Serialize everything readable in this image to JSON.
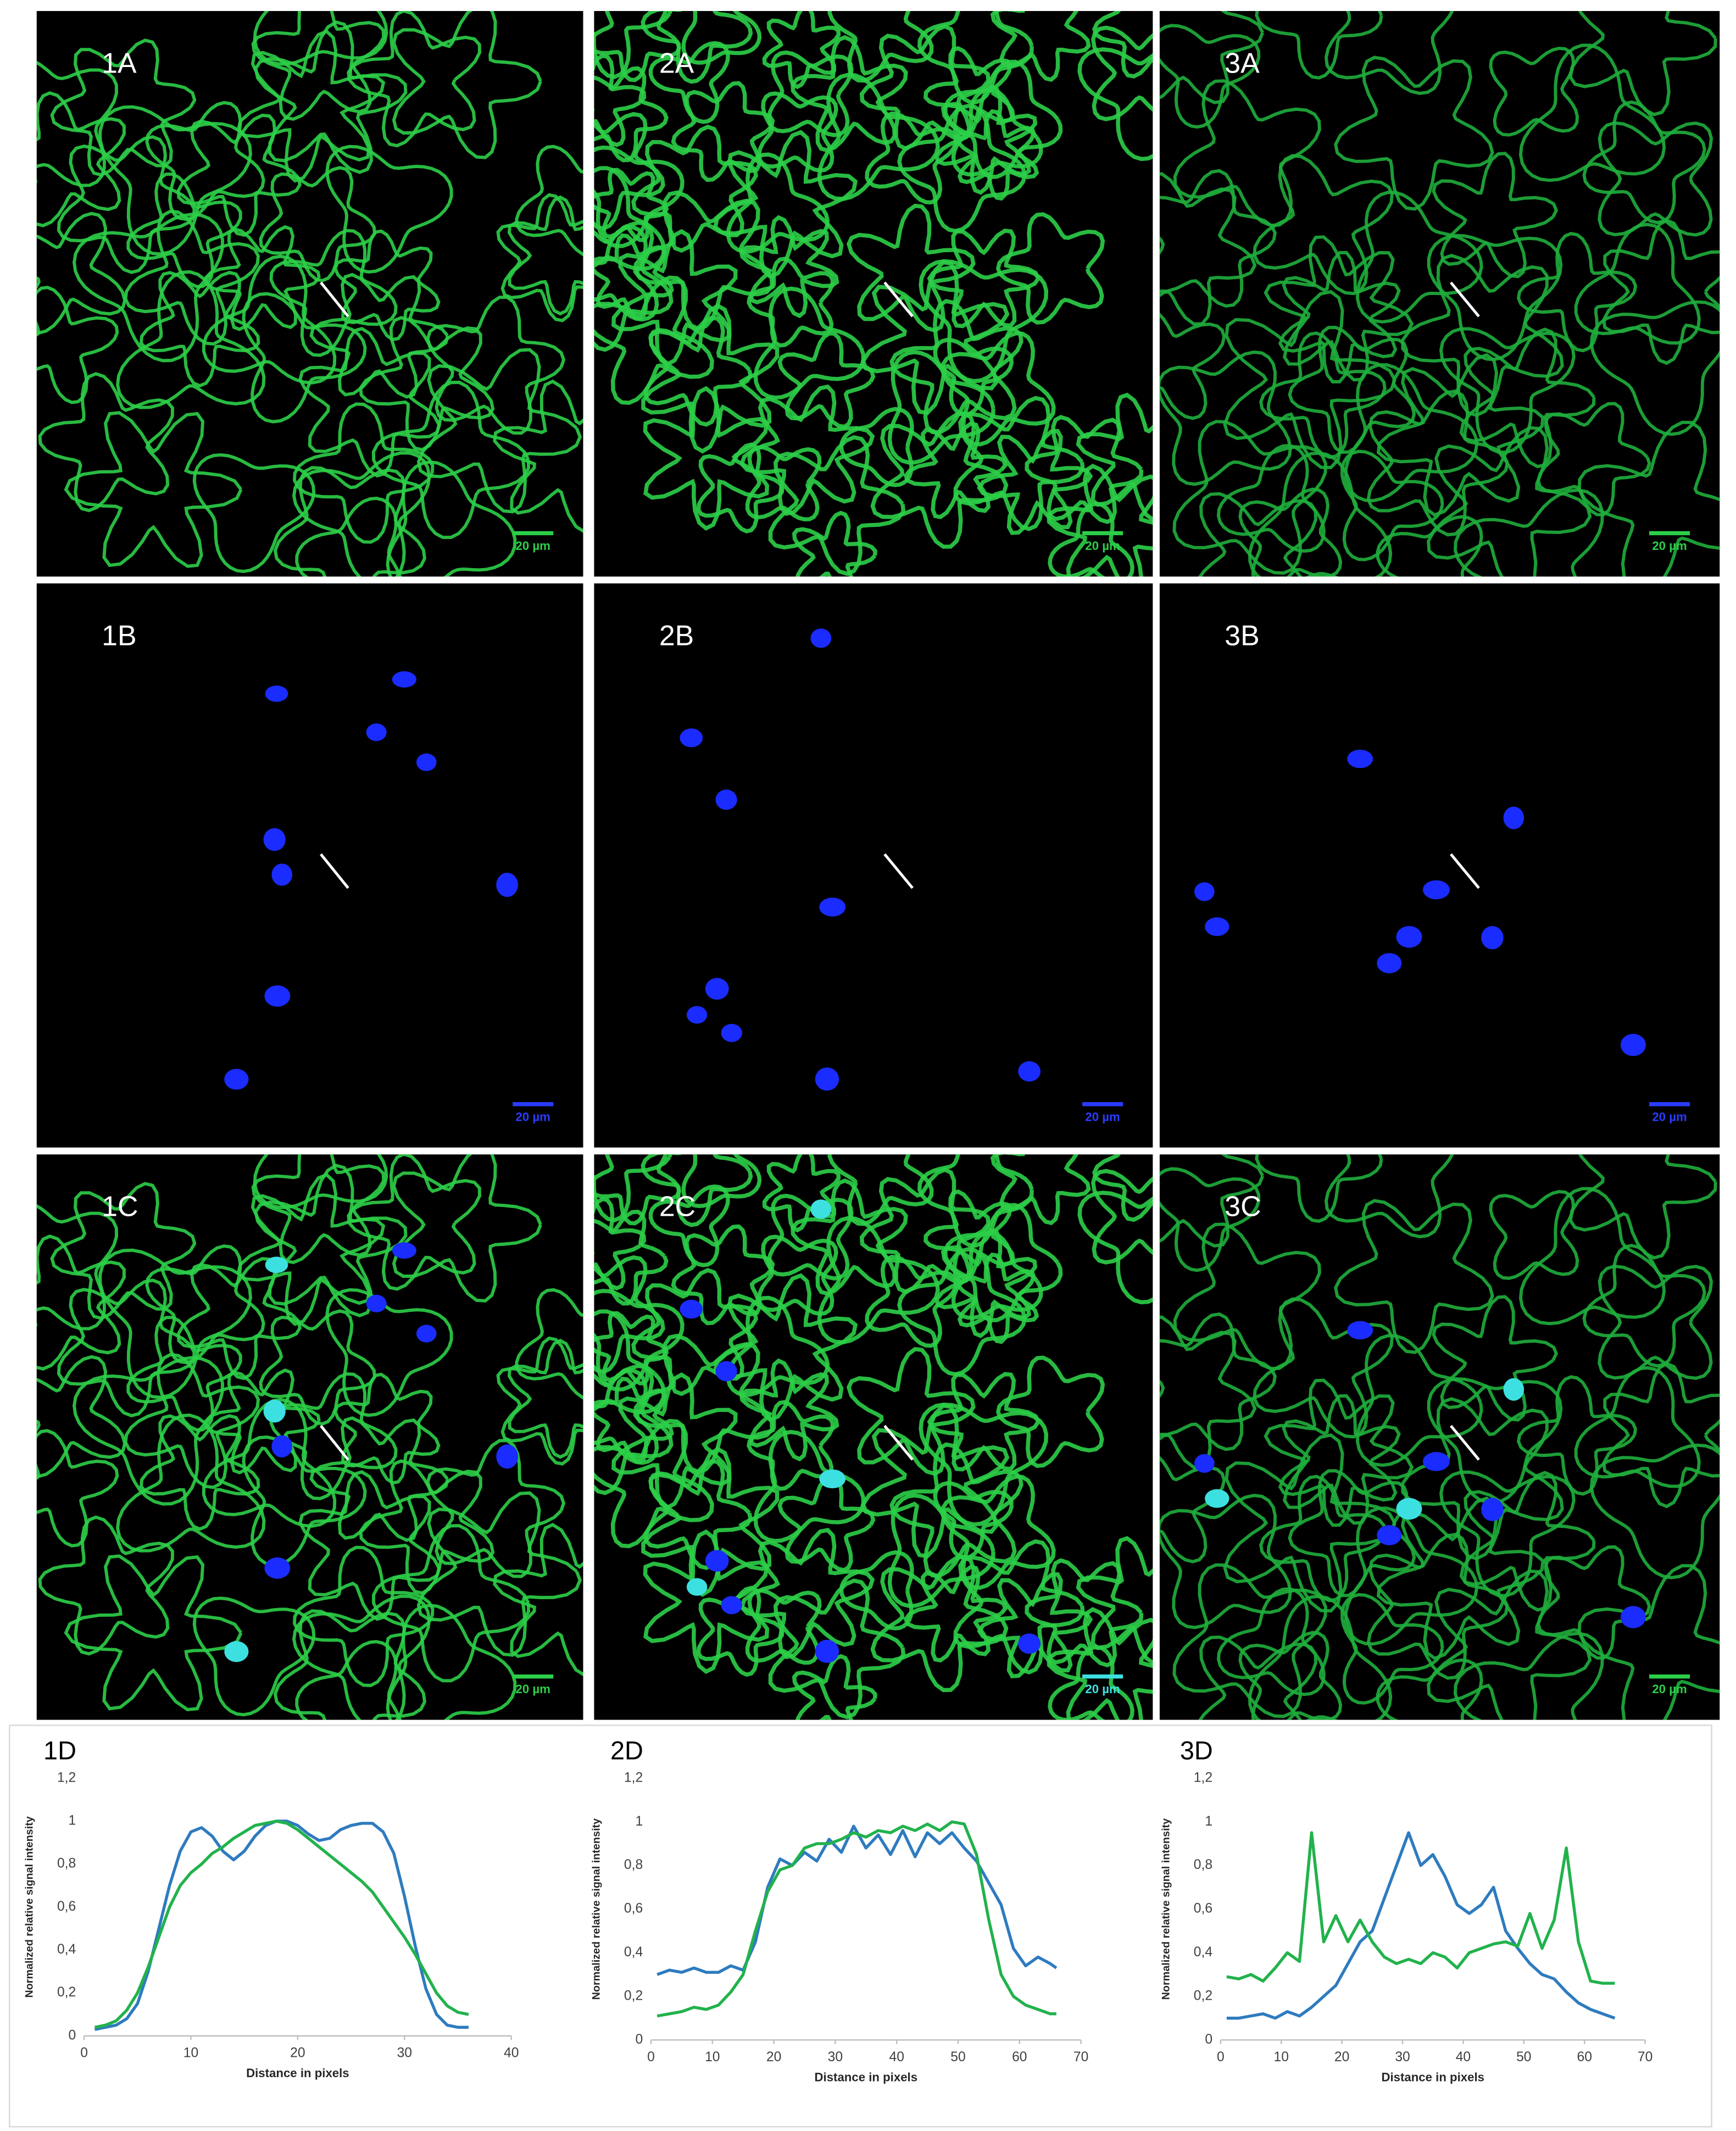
{
  "panels": [
    {
      "label": "1A",
      "scale_bar": "20 µm"
    },
    {
      "label": "2A",
      "scale_bar": "20 µm"
    },
    {
      "label": "3A",
      "scale_bar": "20 µm"
    },
    {
      "label": "1B",
      "scale_bar": "20 µm"
    },
    {
      "label": "2B",
      "scale_bar": "20 µm"
    },
    {
      "label": "3B",
      "scale_bar": "20 µm"
    },
    {
      "label": "1C",
      "scale_bar": "20 µm"
    },
    {
      "label": "2C",
      "scale_bar": "20 µm"
    },
    {
      "label": "3C",
      "scale_bar": "20 µm"
    }
  ],
  "chart_data": [
    {
      "type": "line",
      "title": "1D",
      "x_label": "Distance in pixels",
      "y_label": "Normalized relative signal intensity",
      "x": [
        1,
        2,
        3,
        4,
        5,
        6,
        7,
        8,
        9,
        10,
        11,
        12,
        13,
        14,
        15,
        16,
        17,
        18,
        19,
        20,
        21,
        22,
        23,
        24,
        25,
        26,
        27,
        28,
        29,
        30,
        31,
        32,
        33,
        34,
        35,
        36
      ],
      "series": [
        {
          "color": "#2e7bbf",
          "values": [
            0.03,
            0.04,
            0.05,
            0.08,
            0.15,
            0.3,
            0.5,
            0.7,
            0.86,
            0.95,
            0.97,
            0.93,
            0.86,
            0.82,
            0.86,
            0.93,
            0.98,
            1.0,
            1.0,
            0.98,
            0.94,
            0.91,
            0.92,
            0.96,
            0.98,
            0.99,
            0.99,
            0.95,
            0.85,
            0.65,
            0.42,
            0.22,
            0.1,
            0.05,
            0.04,
            0.04
          ]
        },
        {
          "color": "#22b24c",
          "values": [
            0.04,
            0.05,
            0.07,
            0.12,
            0.2,
            0.32,
            0.46,
            0.6,
            0.7,
            0.76,
            0.8,
            0.85,
            0.88,
            0.92,
            0.95,
            0.98,
            0.99,
            1.0,
            0.99,
            0.96,
            0.92,
            0.88,
            0.84,
            0.8,
            0.76,
            0.72,
            0.67,
            0.6,
            0.53,
            0.46,
            0.38,
            0.29,
            0.2,
            0.14,
            0.11,
            0.1
          ]
        }
      ],
      "xlim": [
        0,
        40
      ],
      "xticks": [
        0,
        10,
        20,
        30,
        40
      ],
      "ylim": [
        0,
        1.2
      ],
      "yticks": [
        0,
        {
          "value": 0.2,
          "label": "0,2"
        },
        {
          "value": 0.4,
          "label": "0,4"
        },
        {
          "value": 0.6,
          "label": "0,6"
        },
        {
          "value": 0.8,
          "label": "0,8"
        },
        1,
        {
          "value": 1.2,
          "label": "1,2"
        }
      ]
    },
    {
      "type": "line",
      "title": "2D",
      "x_label": "Distance in pixels",
      "y_label": "Normalized relative signal intensity",
      "x": [
        1,
        3,
        5,
        7,
        9,
        11,
        13,
        15,
        17,
        19,
        21,
        23,
        25,
        27,
        29,
        31,
        33,
        35,
        37,
        39,
        41,
        43,
        45,
        47,
        49,
        51,
        53,
        55,
        57,
        59,
        61,
        63,
        65,
        66
      ],
      "series": [
        {
          "color": "#2e7bbf",
          "values": [
            0.3,
            0.32,
            0.31,
            0.33,
            0.31,
            0.31,
            0.34,
            0.32,
            0.45,
            0.7,
            0.83,
            0.8,
            0.86,
            0.82,
            0.92,
            0.86,
            0.98,
            0.88,
            0.94,
            0.85,
            0.96,
            0.84,
            0.95,
            0.9,
            0.95,
            0.88,
            0.82,
            0.72,
            0.62,
            0.42,
            0.34,
            0.38,
            0.35,
            0.33
          ]
        },
        {
          "color": "#22b24c",
          "values": [
            0.11,
            0.12,
            0.13,
            0.15,
            0.14,
            0.16,
            0.22,
            0.3,
            0.5,
            0.68,
            0.78,
            0.8,
            0.88,
            0.9,
            0.9,
            0.92,
            0.95,
            0.93,
            0.96,
            0.95,
            0.98,
            0.96,
            0.99,
            0.96,
            1.0,
            0.99,
            0.85,
            0.55,
            0.3,
            0.2,
            0.16,
            0.14,
            0.12,
            0.12
          ]
        }
      ],
      "xlim": [
        0,
        70
      ],
      "xticks": [
        0,
        10,
        20,
        30,
        40,
        50,
        60,
        70
      ],
      "ylim": [
        0,
        1.2
      ],
      "yticks": [
        0,
        {
          "value": 0.2,
          "label": "0,2"
        },
        {
          "value": 0.4,
          "label": "0,4"
        },
        {
          "value": 0.6,
          "label": "0,6"
        },
        {
          "value": 0.8,
          "label": "0,8"
        },
        1,
        {
          "value": 1.2,
          "label": "1,2"
        }
      ]
    },
    {
      "type": "line",
      "title": "3D",
      "x_label": "Distance in pixels",
      "y_label": "Normalized relative signal intensity",
      "x": [
        1,
        3,
        5,
        7,
        9,
        11,
        13,
        15,
        17,
        19,
        21,
        23,
        25,
        27,
        29,
        31,
        33,
        35,
        37,
        39,
        41,
        43,
        45,
        47,
        49,
        51,
        53,
        55,
        57,
        59,
        61,
        63,
        65
      ],
      "series": [
        {
          "color": "#2e7bbf",
          "values": [
            0.1,
            0.1,
            0.11,
            0.12,
            0.1,
            0.13,
            0.11,
            0.15,
            0.2,
            0.25,
            0.35,
            0.45,
            0.5,
            0.65,
            0.8,
            0.95,
            0.8,
            0.85,
            0.75,
            0.62,
            0.58,
            0.62,
            0.7,
            0.5,
            0.42,
            0.35,
            0.3,
            0.28,
            0.22,
            0.17,
            0.14,
            0.12,
            0.1
          ]
        },
        {
          "color": "#22b24c",
          "values": [
            0.29,
            0.28,
            0.3,
            0.27,
            0.33,
            0.4,
            0.36,
            0.95,
            0.45,
            0.57,
            0.45,
            0.55,
            0.45,
            0.38,
            0.35,
            0.37,
            0.35,
            0.4,
            0.38,
            0.33,
            0.4,
            0.42,
            0.44,
            0.45,
            0.43,
            0.58,
            0.42,
            0.55,
            0.88,
            0.45,
            0.27,
            0.26,
            0.26
          ]
        }
      ],
      "xlim": [
        0,
        70
      ],
      "xticks": [
        0,
        10,
        20,
        30,
        40,
        50,
        60,
        70
      ],
      "ylim": [
        0,
        1.2
      ],
      "yticks": [
        0,
        {
          "value": 0.2,
          "label": "0,2"
        },
        {
          "value": 0.4,
          "label": "0,4"
        },
        {
          "value": 0.6,
          "label": "0,6"
        },
        {
          "value": 0.8,
          "label": "0,8"
        },
        1,
        {
          "value": 1.2,
          "label": "1,2"
        }
      ]
    }
  ]
}
